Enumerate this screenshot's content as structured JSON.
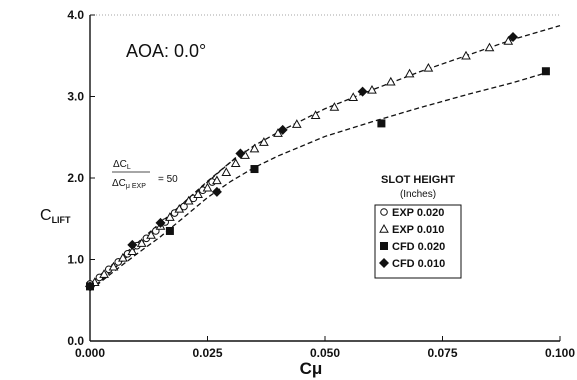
{
  "chart_data": {
    "type": "scatter",
    "annotation_aoa": "AOA: 0.0°",
    "xlabel": "Cμ",
    "ylabel_main": "C",
    "ylabel_sub": "LIFT",
    "xlim": [
      0.0,
      0.1
    ],
    "ylim": [
      0.0,
      4.0
    ],
    "x_ticks": [
      "0.000",
      "0.025",
      "0.050",
      "0.075",
      "0.100"
    ],
    "y_ticks": [
      "0.0",
      "1.0",
      "2.0",
      "3.0",
      "4.0"
    ],
    "grid": false,
    "legend_title": "SLOT HEIGHT",
    "legend_subtitle": "(Inches)",
    "legend_placement": "right",
    "slope_annotation": {
      "numerator": "ΔC",
      "numerator_sub": "L",
      "denominator": "ΔC",
      "denominator_sub": "μ EXP",
      "value": "= 50"
    },
    "series": [
      {
        "name": "EXP 0.020",
        "marker": "circle-open",
        "x": [
          0.0,
          0.002,
          0.004,
          0.006,
          0.008,
          0.01,
          0.012,
          0.014,
          0.016,
          0.018,
          0.02,
          0.022,
          0.024,
          0.026
        ],
        "y": [
          0.7,
          0.78,
          0.88,
          0.97,
          1.07,
          1.17,
          1.26,
          1.35,
          1.46,
          1.57,
          1.65,
          1.75,
          1.85,
          1.95
        ]
      },
      {
        "name": "EXP 0.010",
        "marker": "triangle-open",
        "x": [
          0.001,
          0.003,
          0.005,
          0.007,
          0.009,
          0.011,
          0.013,
          0.015,
          0.017,
          0.019,
          0.021,
          0.023,
          0.025,
          0.027,
          0.029,
          0.031,
          0.033,
          0.035,
          0.037,
          0.04,
          0.044,
          0.048,
          0.052,
          0.056,
          0.06,
          0.064,
          0.068,
          0.072,
          0.08,
          0.085,
          0.089
        ],
        "y": [
          0.72,
          0.82,
          0.91,
          1.02,
          1.1,
          1.2,
          1.3,
          1.41,
          1.52,
          1.62,
          1.72,
          1.8,
          1.88,
          1.97,
          2.07,
          2.18,
          2.28,
          2.36,
          2.44,
          2.55,
          2.66,
          2.77,
          2.87,
          2.99,
          3.08,
          3.18,
          3.28,
          3.35,
          3.5,
          3.6,
          3.68
        ]
      },
      {
        "name": "CFD 0.020",
        "marker": "square-filled",
        "x": [
          0.0,
          0.017,
          0.035,
          0.062,
          0.097
        ],
        "y": [
          0.67,
          1.35,
          2.11,
          2.67,
          3.31
        ]
      },
      {
        "name": "CFD 0.010",
        "marker": "diamond-filled",
        "x": [
          0.0,
          0.009,
          0.015,
          0.027,
          0.032,
          0.041,
          0.058,
          0.09
        ],
        "y": [
          0.67,
          1.18,
          1.45,
          1.83,
          2.3,
          2.59,
          3.06,
          3.73
        ]
      }
    ],
    "fit_lines": [
      {
        "name": "CFD 0.020 fit",
        "x": [
          0.0,
          0.005,
          0.01,
          0.015,
          0.02,
          0.025,
          0.03,
          0.035,
          0.04,
          0.05,
          0.06,
          0.07,
          0.08,
          0.09,
          0.097
        ],
        "y": [
          0.62,
          0.85,
          1.07,
          1.28,
          1.52,
          1.76,
          1.96,
          2.13,
          2.27,
          2.51,
          2.69,
          2.86,
          3.02,
          3.17,
          3.29
        ]
      },
      {
        "name": "CFD 0.010 fit",
        "x": [
          0.0,
          0.005,
          0.01,
          0.015,
          0.02,
          0.025,
          0.03,
          0.035,
          0.04,
          0.05,
          0.06,
          0.07,
          0.08,
          0.09,
          0.1
        ],
        "y": [
          0.62,
          0.88,
          1.15,
          1.42,
          1.7,
          1.96,
          2.2,
          2.4,
          2.56,
          2.85,
          3.08,
          3.3,
          3.5,
          3.7,
          3.87
        ]
      },
      {
        "name": "slope 50 line",
        "x": [
          0.0,
          0.032
        ],
        "y": [
          0.7,
          2.3
        ]
      }
    ]
  }
}
